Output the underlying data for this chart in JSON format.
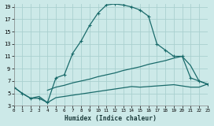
{
  "xlabel": "Humidex (Indice chaleur)",
  "bg_color": "#cce9e8",
  "grid_color": "#aad0cf",
  "line_color": "#1a6b6b",
  "xlim": [
    0,
    23
  ],
  "ylim": [
    3,
    19.5
  ],
  "xtick_vals": [
    0,
    1,
    2,
    3,
    4,
    5,
    6,
    7,
    8,
    9,
    10,
    11,
    12,
    13,
    14,
    15,
    16,
    17,
    18,
    19,
    20,
    21,
    22,
    23
  ],
  "ytick_vals": [
    3,
    5,
    7,
    9,
    11,
    13,
    15,
    17,
    19
  ],
  "curve_main_x": [
    0,
    1,
    2,
    3,
    4,
    5,
    6,
    7,
    8,
    9,
    10,
    11,
    12,
    13,
    14,
    15,
    16,
    17,
    18,
    19,
    20,
    21,
    22,
    23
  ],
  "curve_main_y": [
    6.0,
    5.0,
    4.2,
    4.2,
    3.5,
    7.5,
    8.0,
    11.5,
    13.5,
    16.0,
    18.0,
    19.3,
    19.5,
    19.3,
    19.0,
    18.5,
    17.5,
    13.0,
    12.0,
    11.0,
    11.0,
    7.5,
    7.0,
    6.5
  ],
  "curve_diag_x": [
    4,
    5,
    6,
    7,
    8,
    9,
    10,
    11,
    12,
    13,
    14,
    15,
    16,
    17,
    18,
    19,
    20,
    21,
    22,
    23
  ],
  "curve_diag_y": [
    5.5,
    6.0,
    6.3,
    6.7,
    7.0,
    7.3,
    7.7,
    8.0,
    8.3,
    8.7,
    9.0,
    9.3,
    9.7,
    10.0,
    10.3,
    10.7,
    11.0,
    9.5,
    7.0,
    6.5
  ],
  "curve_flat_x": [
    0,
    1,
    2,
    3,
    4,
    5,
    6,
    7,
    8,
    9,
    10,
    11,
    12,
    13,
    14,
    15,
    16,
    17,
    18,
    19,
    20,
    21,
    22,
    23
  ],
  "curve_flat_y": [
    6.0,
    5.0,
    4.2,
    4.5,
    3.5,
    4.3,
    4.5,
    4.7,
    4.9,
    5.1,
    5.3,
    5.5,
    5.7,
    5.9,
    6.1,
    6.0,
    6.1,
    6.2,
    6.3,
    6.4,
    6.2,
    6.0,
    6.0,
    6.5
  ]
}
